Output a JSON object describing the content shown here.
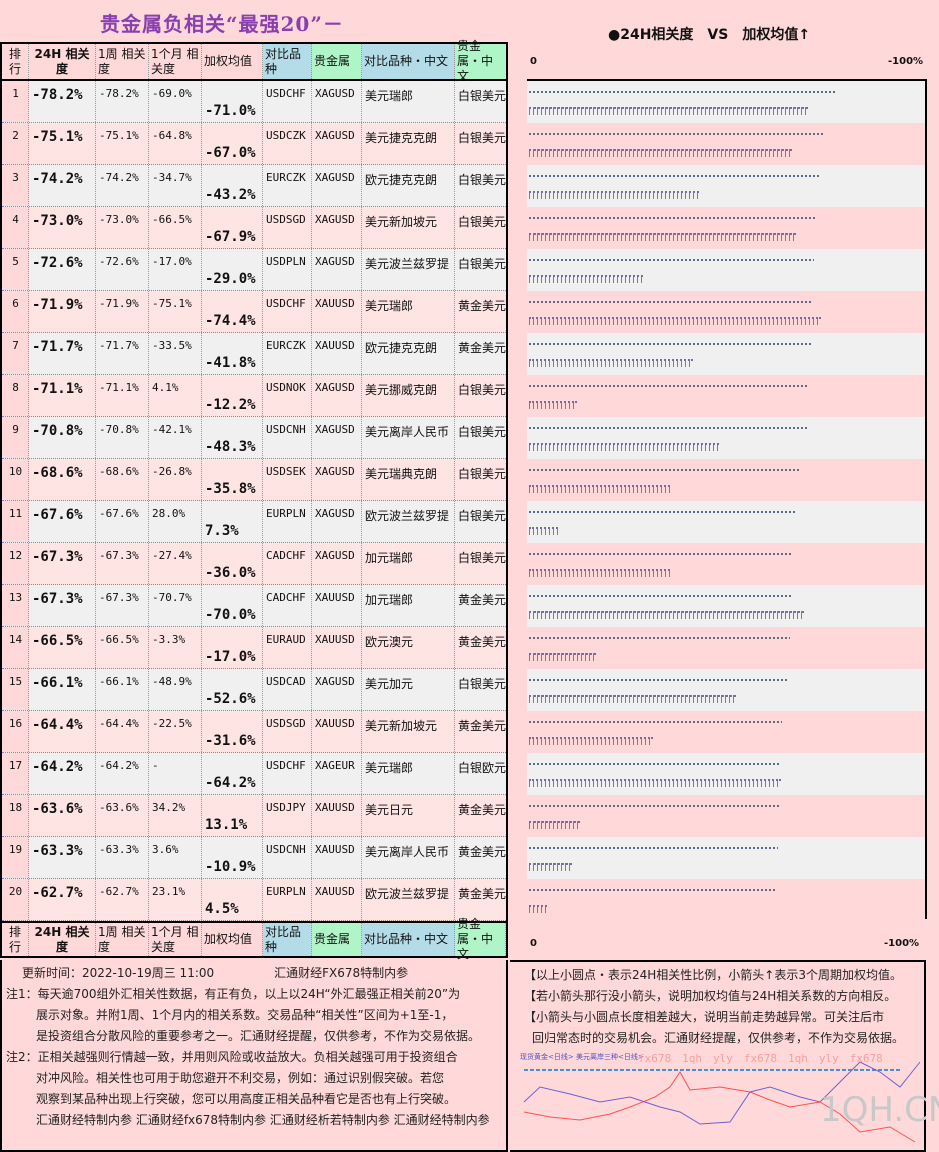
{
  "title": "贵金属负相关“最强20”－",
  "headers": {
    "rank": "排行",
    "h24": "24H 相关度",
    "w1": "1周 相关度",
    "m1": "1个月 相关度",
    "avg": "加权均值",
    "pair": "对比品种",
    "metal": "贵金属",
    "pair_cn": "对比品种・中文",
    "metal_cn": "贵金属・中文"
  },
  "rows": [
    {
      "rank": "1",
      "h24": -78.2,
      "w1": "-78.2%",
      "m1": "-69.0%",
      "avg": -71.0,
      "pair": "USDCHF",
      "metal": "XAGUSD",
      "pair_cn": "美元瑞郎",
      "metal_cn": "白银美元"
    },
    {
      "rank": "2",
      "h24": -75.1,
      "w1": "-75.1%",
      "m1": "-64.8%",
      "avg": -67.0,
      "pair": "USDCZK",
      "metal": "XAGUSD",
      "pair_cn": "美元捷克克朗",
      "metal_cn": "白银美元"
    },
    {
      "rank": "3",
      "h24": -74.2,
      "w1": "-74.2%",
      "m1": "-34.7%",
      "avg": -43.2,
      "pair": "EURCZK",
      "metal": "XAGUSD",
      "pair_cn": "欧元捷克克朗",
      "metal_cn": "白银美元"
    },
    {
      "rank": "4",
      "h24": -73.0,
      "w1": "-73.0%",
      "m1": "-66.5%",
      "avg": -67.9,
      "pair": "USDSGD",
      "metal": "XAGUSD",
      "pair_cn": "美元新加坡元",
      "metal_cn": "白银美元"
    },
    {
      "rank": "5",
      "h24": -72.6,
      "w1": "-72.6%",
      "m1": "-17.0%",
      "avg": -29.0,
      "pair": "USDPLN",
      "metal": "XAGUSD",
      "pair_cn": "美元波兰兹罗提",
      "metal_cn": "白银美元"
    },
    {
      "rank": "6",
      "h24": -71.9,
      "w1": "-71.9%",
      "m1": "-75.1%",
      "avg": -74.4,
      "pair": "USDCHF",
      "metal": "XAUUSD",
      "pair_cn": "美元瑞郎",
      "metal_cn": "黄金美元"
    },
    {
      "rank": "7",
      "h24": -71.7,
      "w1": "-71.7%",
      "m1": "-33.5%",
      "avg": -41.8,
      "pair": "EURCZK",
      "metal": "XAUUSD",
      "pair_cn": "欧元捷克克朗",
      "metal_cn": "黄金美元"
    },
    {
      "rank": "8",
      "h24": -71.1,
      "w1": "-71.1%",
      "m1": "4.1%",
      "avg": -12.2,
      "pair": "USDNOK",
      "metal": "XAGUSD",
      "pair_cn": "美元挪威克朗",
      "metal_cn": "白银美元"
    },
    {
      "rank": "9",
      "h24": -70.8,
      "w1": "-70.8%",
      "m1": "-42.1%",
      "avg": -48.3,
      "pair": "USDCNH",
      "metal": "XAGUSD",
      "pair_cn": "美元离岸人民币",
      "metal_cn": "白银美元"
    },
    {
      "rank": "10",
      "h24": -68.6,
      "w1": "-68.6%",
      "m1": "-26.8%",
      "avg": -35.8,
      "pair": "USDSEK",
      "metal": "XAGUSD",
      "pair_cn": "美元瑞典克朗",
      "metal_cn": "白银美元"
    },
    {
      "rank": "11",
      "h24": -67.6,
      "w1": "-67.6%",
      "m1": "28.0%",
      "avg": 7.3,
      "pair": "EURPLN",
      "metal": "XAGUSD",
      "pair_cn": "欧元波兰兹罗提",
      "metal_cn": "白银美元"
    },
    {
      "rank": "12",
      "h24": -67.3,
      "w1": "-67.3%",
      "m1": "-27.4%",
      "avg": -36.0,
      "pair": "CADCHF",
      "metal": "XAGUSD",
      "pair_cn": "加元瑞郎",
      "metal_cn": "白银美元"
    },
    {
      "rank": "13",
      "h24": -67.3,
      "w1": "-67.3%",
      "m1": "-70.7%",
      "avg": -70.0,
      "pair": "CADCHF",
      "metal": "XAUUSD",
      "pair_cn": "加元瑞郎",
      "metal_cn": "黄金美元"
    },
    {
      "rank": "14",
      "h24": -66.5,
      "w1": "-66.5%",
      "m1": "-3.3%",
      "avg": -17.0,
      "pair": "EURAUD",
      "metal": "XAUUSD",
      "pair_cn": "欧元澳元",
      "metal_cn": "黄金美元"
    },
    {
      "rank": "15",
      "h24": -66.1,
      "w1": "-66.1%",
      "m1": "-48.9%",
      "avg": -52.6,
      "pair": "USDCAD",
      "metal": "XAGUSD",
      "pair_cn": "美元加元",
      "metal_cn": "白银美元"
    },
    {
      "rank": "16",
      "h24": -64.4,
      "w1": "-64.4%",
      "m1": "-22.5%",
      "avg": -31.6,
      "pair": "USDSGD",
      "metal": "XAUUSD",
      "pair_cn": "美元新加坡元",
      "metal_cn": "黄金美元"
    },
    {
      "rank": "17",
      "h24": -64.2,
      "w1": "-64.2%",
      "m1": "-",
      "avg": -64.2,
      "pair": "USDCHF",
      "metal": "XAGEUR",
      "pair_cn": "美元瑞郎",
      "metal_cn": "白银欧元"
    },
    {
      "rank": "18",
      "h24": -63.6,
      "w1": "-63.6%",
      "m1": "34.2%",
      "avg": 13.1,
      "pair": "USDJPY",
      "metal": "XAUUSD",
      "pair_cn": "美元日元",
      "metal_cn": "黄金美元"
    },
    {
      "rank": "19",
      "h24": -63.3,
      "w1": "-63.3%",
      "m1": "3.6%",
      "avg": -10.9,
      "pair": "USDCNH",
      "metal": "XAUUSD",
      "pair_cn": "美元离岸人民币",
      "metal_cn": "黄金美元"
    },
    {
      "rank": "20",
      "h24": -62.7,
      "w1": "-62.7%",
      "m1": "23.1%",
      "avg": 4.5,
      "pair": "EURPLN",
      "metal": "XAUUSD",
      "pair_cn": "欧元波兰兹罗提",
      "metal_cn": "黄金美元"
    }
  ],
  "right": {
    "title": "●24H相关度　VS　加权均值↑",
    "axis_left": "0",
    "axis_right": "-100%"
  },
  "notes": {
    "update": "更新时间：2022-10-19周三 11:00　　　　　汇通财经FX678特制内参",
    "lines": [
      "注1：每天逾700组外汇相关性数据，有正有负，以上以24H“外汇最强正相关前20”为",
      "展示对象。并附1周、1个月内的相关系数。交易品种“相关性”区间为+1至-1，",
      "是投资组合分散风险的重要参考之一。汇通财经提醒，仅供参考，不作为交易依据。",
      "注2：正相关越强则行情越一致，并用则风险或收益放大。负相关越强可用于投资组合",
      "对冲风险。相关性也可用于助您避开不利交易，例如：通过识别假突破。若您",
      "观察到某品种出现上行突破，您可以用高度正相关品种看它是否也有上行突破。",
      "汇通财经特制内参 汇通财经fx678特制内参 汇通财经析若特制内参 汇通财经特制内参"
    ]
  },
  "right_notes": [
    "【以上小圆点・表示24H相关性比例，小箭头↑表示3个周期加权均值。",
    "【若小箭头那行没小箭头，说明加权均值与24H相关系数的方向相反。",
    "【小箭头与小圆点长度相差越大，说明当前走势越异常。可关注后市",
    "回归常态时的交易机会。汇通财经提醒，仅供参考，不作为交易依据。"
  ],
  "mini_chart": {
    "legend": "现货黄金<日线> 美元离岸三种<日线>",
    "watermark": "fx678　1qh　yly　fx678　1qh　yly　fx678",
    "logo": "1QH.CN"
  },
  "colors": {
    "bg": "#ffd9d9",
    "title": "#8a3fb0",
    "pair_header": "#b4dce8",
    "metal_header": "#b0f5c8"
  }
}
